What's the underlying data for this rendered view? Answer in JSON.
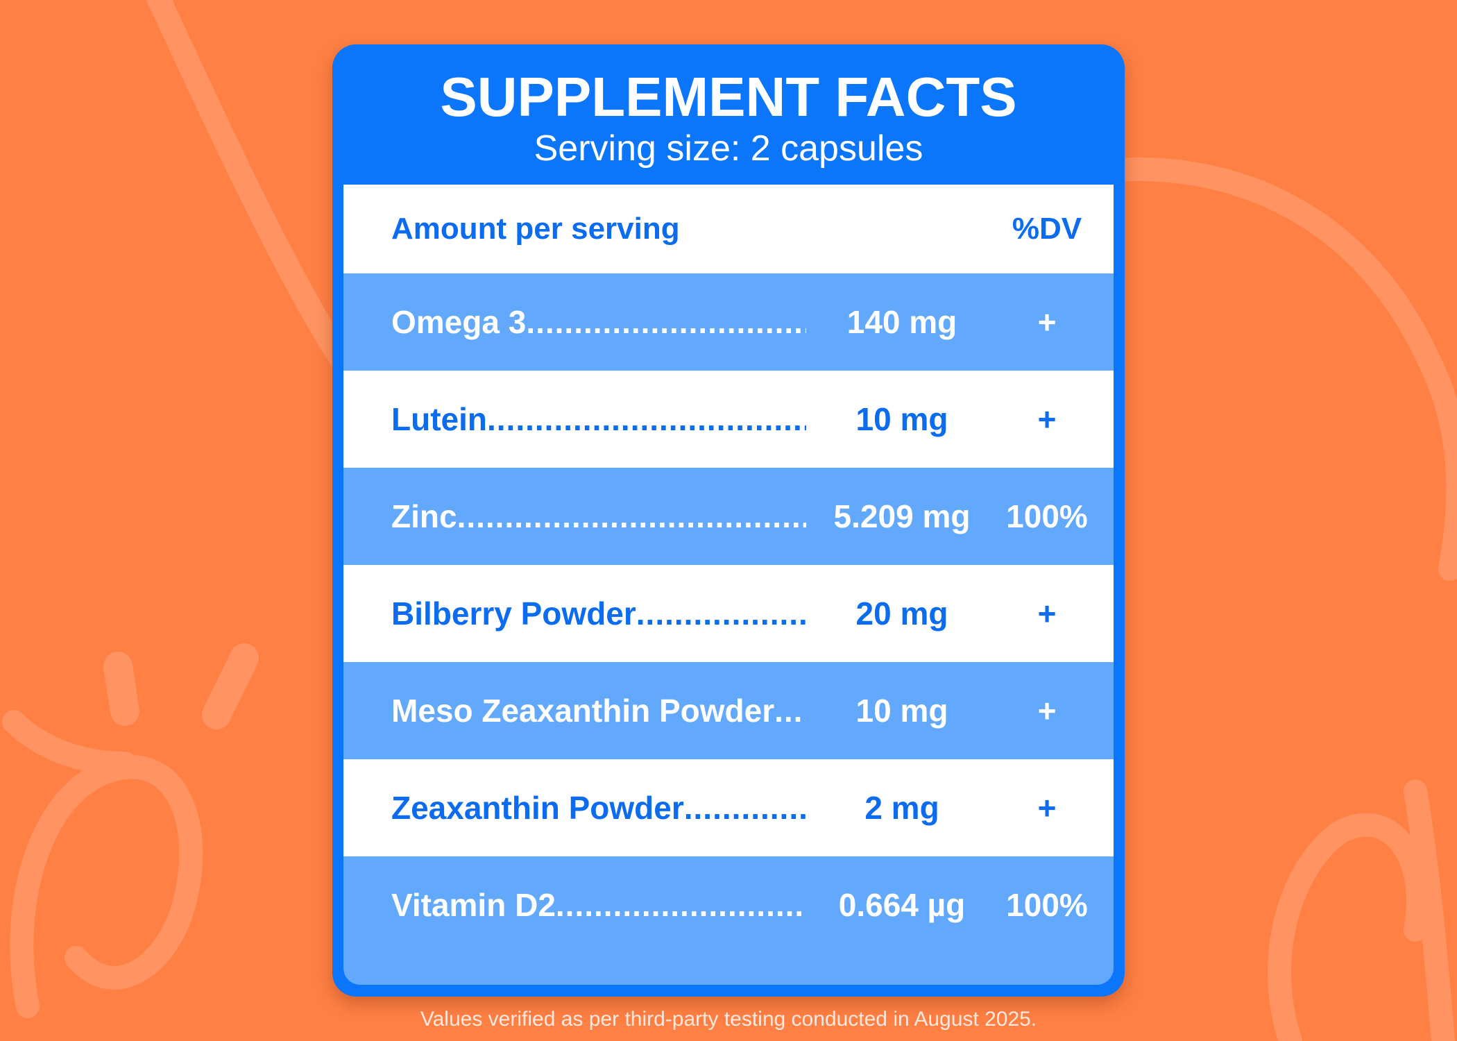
{
  "panel": {
    "title": "SUPPLEMENT FACTS",
    "subtitle": "Serving size: 2 capsules"
  },
  "table": {
    "header_left": "Amount per serving",
    "header_right": "%DV",
    "rows": [
      {
        "name": "Omega 3",
        "dots": "..............................",
        "amount": "140 mg",
        "dv": "+"
      },
      {
        "name": "Lutein",
        "dots": "....................................",
        "amount": "10 mg",
        "dv": "+"
      },
      {
        "name": "Zinc",
        "dots": ".......................................",
        "amount": "5.209 mg",
        "dv": "100%"
      },
      {
        "name": "Bilberry Powder",
        "dots": "...................",
        "amount": "20 mg",
        "dv": "+"
      },
      {
        "name": "Meso Zeaxanthin Powder",
        "dots": "...",
        "amount": "10 mg",
        "dv": "+"
      },
      {
        "name": "Zeaxanthin Powder",
        "dots": ".............",
        "amount": "2 mg",
        "dv": "+"
      },
      {
        "name": "Vitamin D2",
        "dots": "...........................",
        "amount": "0.664 µg",
        "dv": "100%"
      }
    ]
  },
  "footnote": "Values verified as per third-party testing conducted in August 2025.",
  "colors": {
    "background": "#ff8045",
    "panel_blue": "#0b76fb",
    "row_light": "#ffffff",
    "row_dark": "#62a8fd",
    "text_blue": "#0b6cf0"
  }
}
